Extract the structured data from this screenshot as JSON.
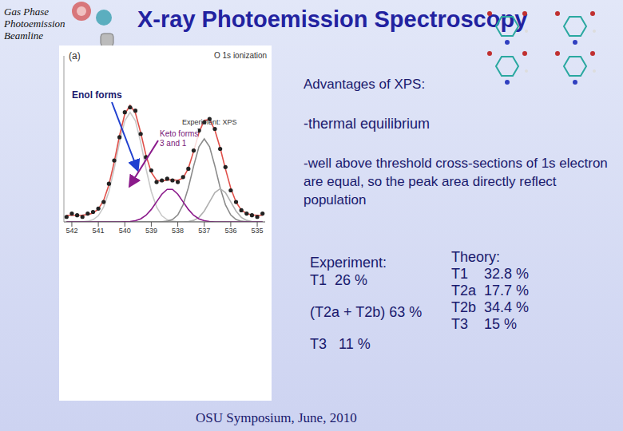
{
  "header": {
    "lines": [
      "Gas Phase",
      "Photoemission",
      "Beamline"
    ],
    "title": "X-ray Photoemission Spectroscopy"
  },
  "chart_data": {
    "type": "line",
    "panel_label": "(a)",
    "title": "O 1s ionization",
    "annotations": [
      "Experiment: XPS",
      "Enol forms",
      "Keto forms\n3 and 1"
    ],
    "x": [
      542.2,
      542.0,
      541.8,
      541.6,
      541.4,
      541.2,
      541.0,
      540.8,
      540.6,
      540.4,
      540.2,
      540.0,
      539.8,
      539.6,
      539.4,
      539.2,
      539.0,
      538.8,
      538.6,
      538.4,
      538.2,
      538.0,
      537.8,
      537.6,
      537.4,
      537.2,
      537.0,
      536.8,
      536.6,
      536.4,
      536.2,
      536.0,
      535.8,
      535.6,
      535.4,
      535.2,
      535.0,
      534.8
    ],
    "xlim": [
      542.3,
      534.7
    ],
    "xticks": [
      542,
      541,
      540,
      539,
      538,
      537,
      536,
      535
    ],
    "ylim": [
      0,
      1
    ],
    "tick_labels": "x",
    "series": [
      {
        "type": "line",
        "color": "#c8c8c8",
        "values": [
          0,
          0,
          0,
          0.001,
          0.004,
          0.013,
          0.037,
          0.089,
          0.183,
          0.321,
          0.479,
          0.609,
          0.66,
          0.609,
          0.479,
          0.321,
          0.183,
          0.089,
          0.037,
          0.013,
          0.004,
          0.001,
          0,
          0,
          0,
          0,
          0,
          0,
          0,
          0,
          0,
          0,
          0,
          0,
          0,
          0,
          0,
          0
        ]
      },
      {
        "type": "line",
        "color": "#8a8a8a",
        "values": [
          0,
          0,
          0,
          0,
          0,
          0,
          0,
          0,
          0,
          0,
          0,
          0,
          0,
          0,
          0,
          0,
          0,
          0,
          0.001,
          0.004,
          0.014,
          0.042,
          0.103,
          0.206,
          0.337,
          0.453,
          0.5,
          0.453,
          0.337,
          0.206,
          0.103,
          0.042,
          0.014,
          0.004,
          0.001,
          0,
          0,
          0
        ]
      },
      {
        "type": "line",
        "color": "#b0b0b0",
        "values": [
          0,
          0,
          0,
          0,
          0,
          0,
          0,
          0,
          0,
          0,
          0,
          0,
          0,
          0,
          0,
          0,
          0,
          0,
          0,
          0,
          0,
          0,
          0,
          0.002,
          0.009,
          0.027,
          0.065,
          0.121,
          0.176,
          0.2,
          0.176,
          0.121,
          0.065,
          0.027,
          0.009,
          0.002,
          0,
          0
        ]
      },
      {
        "type": "line",
        "color": "#8b1a8b",
        "values": [
          0,
          0,
          0,
          0,
          0,
          0,
          0,
          0,
          0,
          0,
          0,
          0.001,
          0.002,
          0.007,
          0.018,
          0.04,
          0.075,
          0.121,
          0.167,
          0.196,
          0.196,
          0.167,
          0.121,
          0.075,
          0.04,
          0.018,
          0.007,
          0.002,
          0,
          0,
          0,
          0,
          0,
          0,
          0,
          0,
          0,
          0
        ]
      },
      {
        "type": "line",
        "color": "#e0504a",
        "values": [
          0.04,
          0.04,
          0.04,
          0.041,
          0.044,
          0.053,
          0.077,
          0.129,
          0.223,
          0.361,
          0.519,
          0.65,
          0.702,
          0.656,
          0.537,
          0.401,
          0.298,
          0.25,
          0.245,
          0.253,
          0.254,
          0.25,
          0.264,
          0.323,
          0.426,
          0.538,
          0.612,
          0.616,
          0.553,
          0.446,
          0.319,
          0.203,
          0.119,
          0.071,
          0.05,
          0.042,
          0.04,
          0.04
        ]
      },
      {
        "type": "scatter",
        "marker": "circle",
        "color": "#222222",
        "values": [
          0.03,
          0.05,
          0.04,
          0.03,
          0.05,
          0.06,
          0.08,
          0.12,
          0.23,
          0.37,
          0.51,
          0.66,
          0.69,
          0.67,
          0.53,
          0.39,
          0.31,
          0.24,
          0.25,
          0.26,
          0.25,
          0.24,
          0.27,
          0.32,
          0.43,
          0.55,
          0.6,
          0.62,
          0.56,
          0.44,
          0.33,
          0.19,
          0.12,
          0.07,
          0.05,
          0.04,
          0.03,
          0.05
        ]
      }
    ]
  },
  "advantages": {
    "heading": "Advantages of XPS:",
    "items": [
      "-thermal equilibrium",
      "-well above threshold cross-sections of 1s electron are equal, so the peak area directly reflect population"
    ]
  },
  "experiment": {
    "heading": "Experiment:",
    "rows": [
      [
        "T1",
        "26 %"
      ],
      [
        "(T2a + T2b)",
        "63 %"
      ],
      [
        "T3",
        "11 %"
      ]
    ]
  },
  "theory": {
    "heading": "Theory:",
    "rows": [
      [
        "T1",
        "32.8 %"
      ],
      [
        "T2a",
        "17.7 %"
      ],
      [
        "T2b",
        "34.4 %"
      ],
      [
        "T3",
        "15 %"
      ]
    ]
  },
  "footer": "OSU Symposium, June, 2010"
}
